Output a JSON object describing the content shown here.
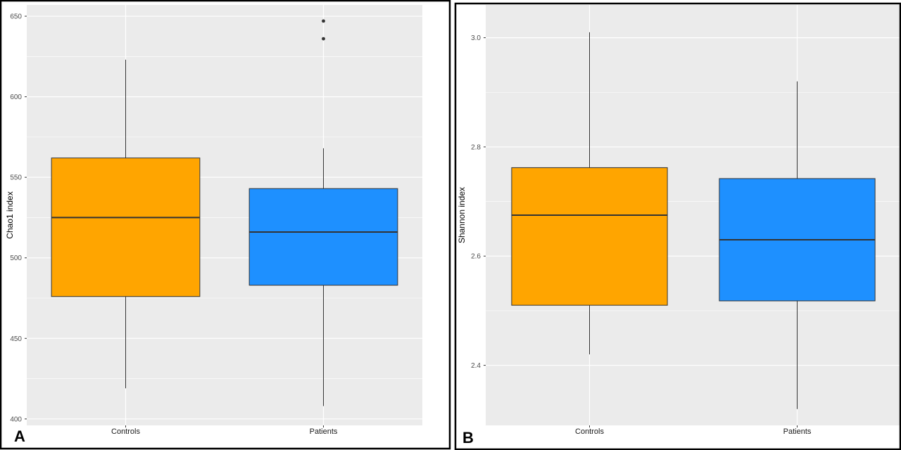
{
  "colors": {
    "controls": "#FFA500",
    "patients": "#1E90FF",
    "panel_background": "#EBEBEB",
    "grid": "#FFFFFF",
    "frame": "#000000",
    "outline": "#333333",
    "tick_label": "#4D4D4D"
  },
  "chart_data": [
    {
      "type": "boxplot",
      "panel_label": "A",
      "title": "",
      "xlabel": "",
      "ylabel": "Chao1 index",
      "categories": [
        "Controls",
        "Patients"
      ],
      "ylim": [
        396,
        657
      ],
      "yticks": [
        400,
        450,
        500,
        550,
        600,
        650
      ],
      "ytick_labels": [
        "400",
        "450",
        "500",
        "550",
        "600",
        "650"
      ],
      "grid": true,
      "legend": "none",
      "boxes": [
        {
          "category": "Controls",
          "whisker_low": 419,
          "q1": 476,
          "median": 525,
          "q3": 562,
          "whisker_high": 623,
          "outliers": [],
          "color": "#FFA500"
        },
        {
          "category": "Patients",
          "whisker_low": 408,
          "q1": 483,
          "median": 516,
          "q3": 543,
          "whisker_high": 568,
          "outliers": [
            636,
            647
          ],
          "color": "#1E90FF"
        }
      ]
    },
    {
      "type": "boxplot",
      "panel_label": "B",
      "title": "",
      "xlabel": "",
      "ylabel": "Shannon index",
      "categories": [
        "Controls",
        "Patients"
      ],
      "ylim": [
        2.29,
        3.06
      ],
      "yticks": [
        2.4,
        2.6,
        2.8,
        3.0
      ],
      "ytick_labels": [
        "2.4",
        "2.6",
        "2.8",
        "3.0"
      ],
      "grid": true,
      "legend": "none",
      "boxes": [
        {
          "category": "Controls",
          "whisker_low": 2.42,
          "q1": 2.51,
          "median": 2.675,
          "q3": 2.762,
          "whisker_high": 3.01,
          "outliers": [],
          "color": "#FFA500"
        },
        {
          "category": "Patients",
          "whisker_low": 2.32,
          "q1": 2.518,
          "median": 2.63,
          "q3": 2.742,
          "whisker_high": 2.92,
          "outliers": [],
          "color": "#1E90FF"
        }
      ]
    }
  ]
}
